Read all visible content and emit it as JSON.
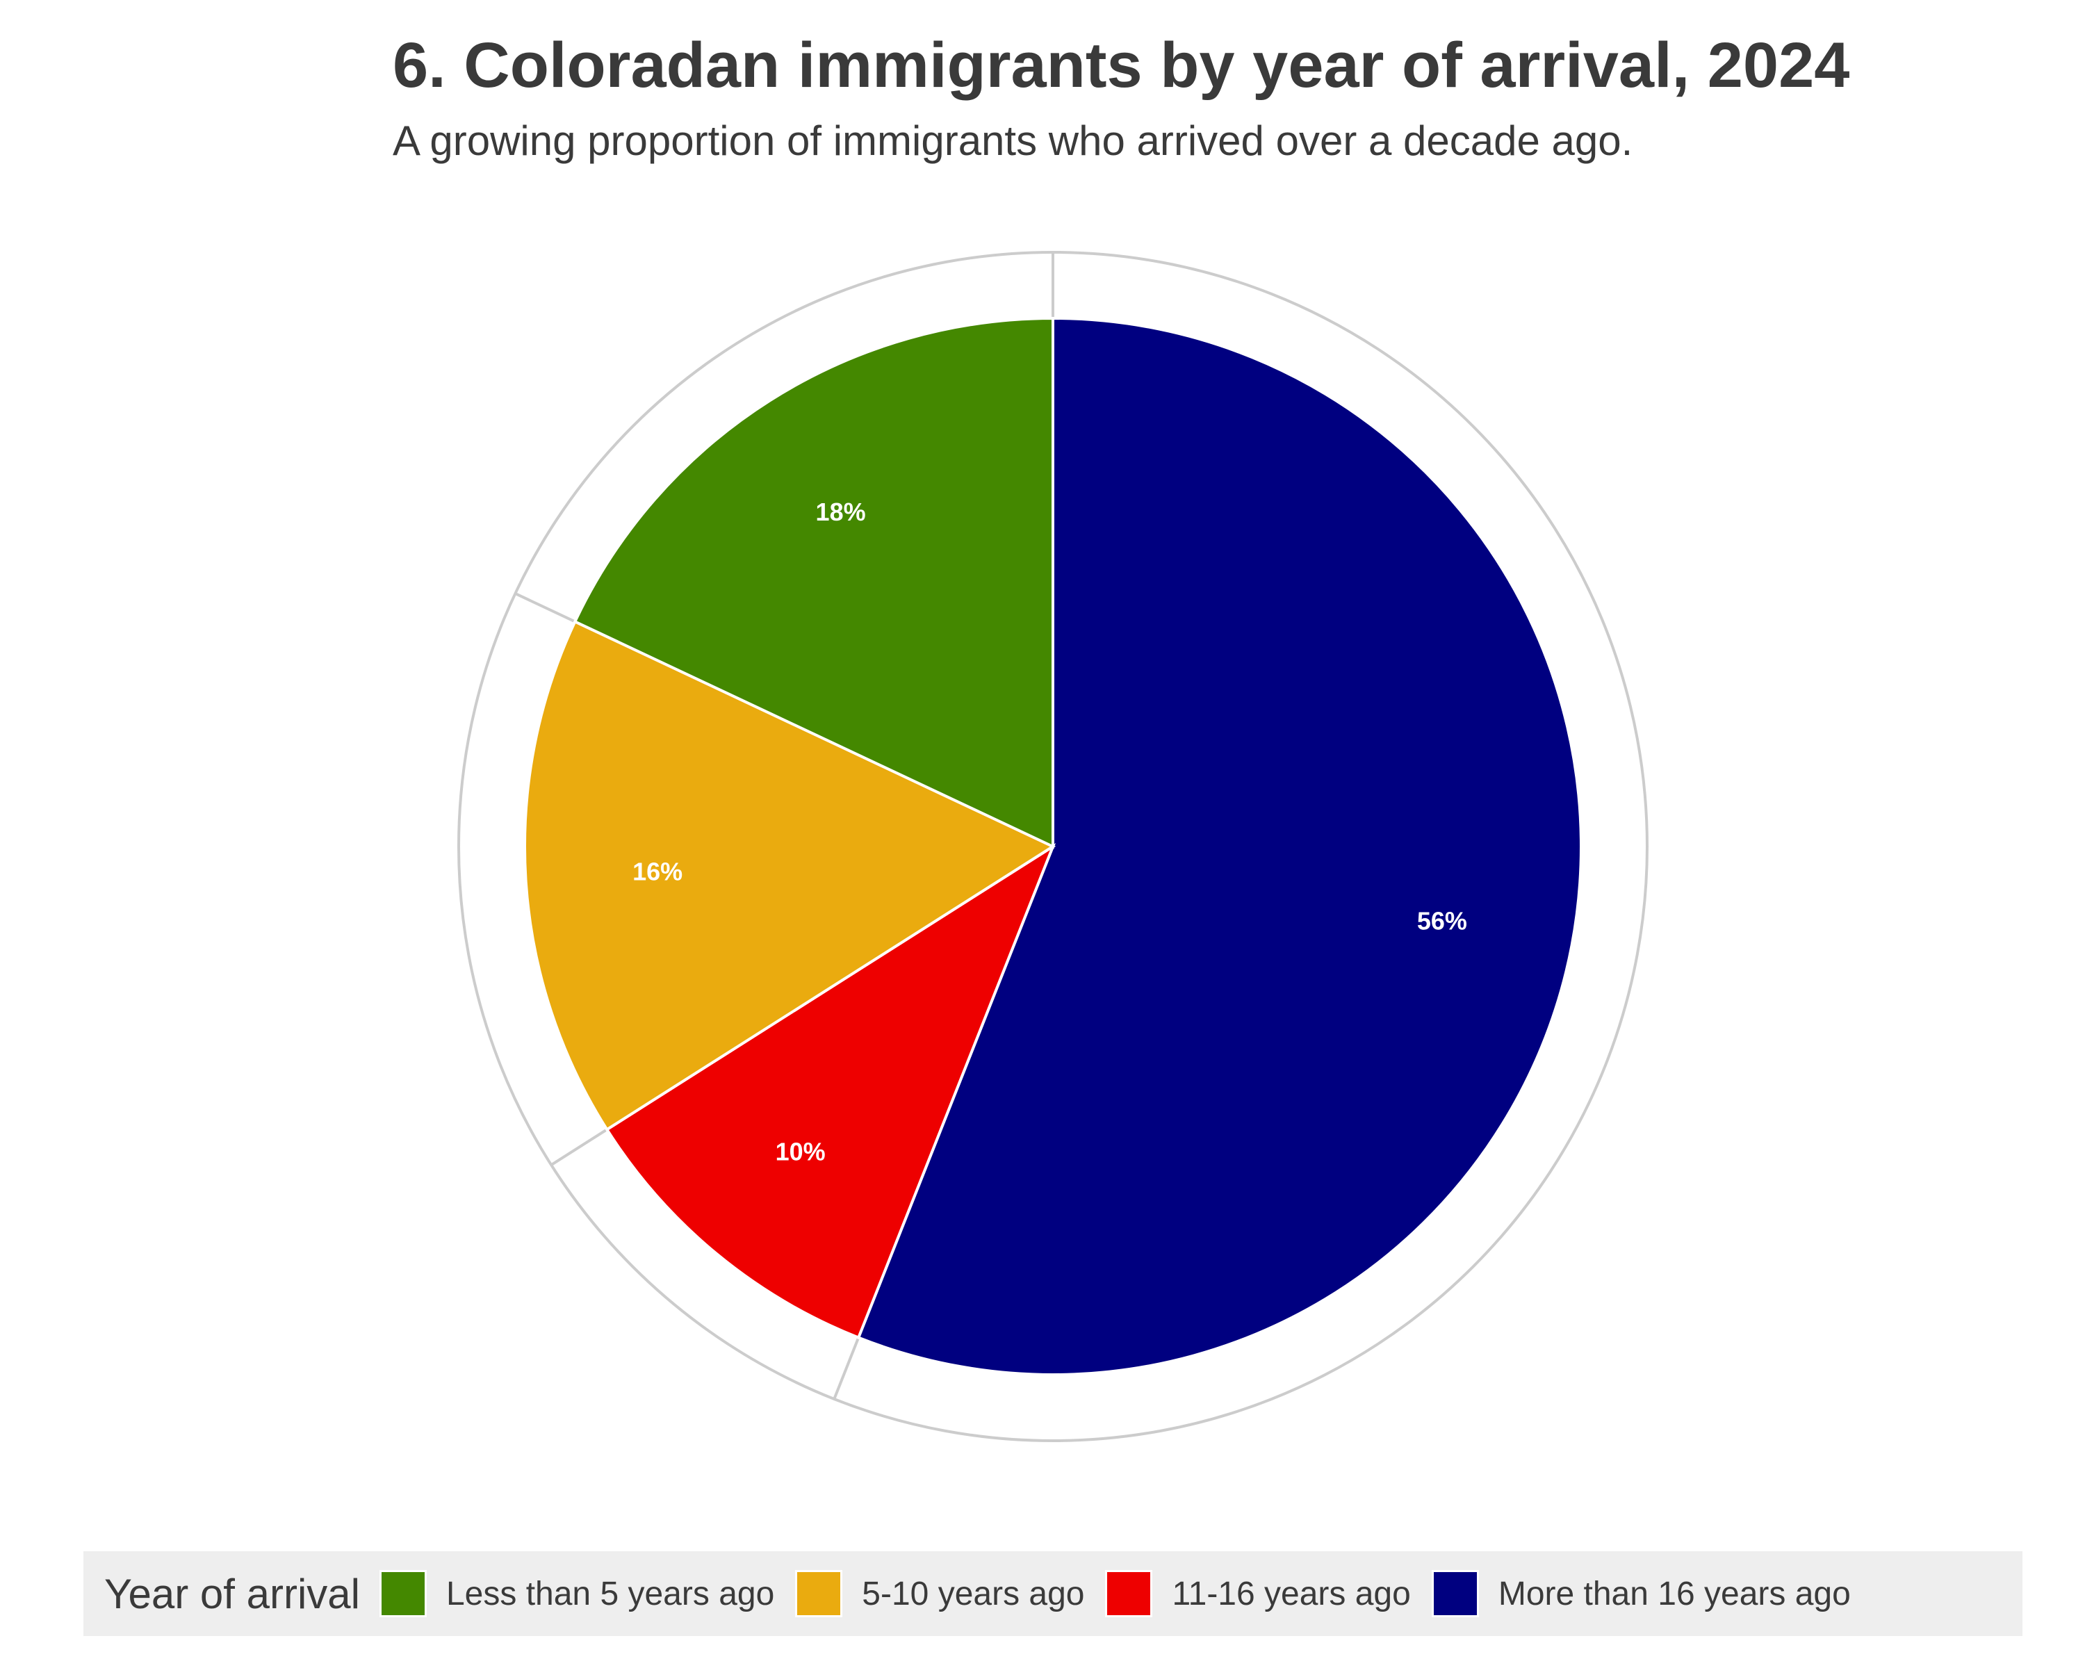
{
  "title": "6. Coloradan immigrants by year of arrival, 2024",
  "subtitle": "A growing proportion of immigrants who arrived over a decade ago.",
  "legend": {
    "title": "Year of arrival",
    "items": [
      {
        "label": "Less than 5 years ago",
        "color": "#448800"
      },
      {
        "label": "5-10 years ago",
        "color": "#EAAB0F"
      },
      {
        "label": "11-16 years ago",
        "color": "#EE0000"
      },
      {
        "label": "More than 16 years ago",
        "color": "#000080"
      }
    ]
  },
  "chart_data": {
    "type": "pie",
    "title": "6. Coloradan immigrants by year of arrival, 2024",
    "subtitle": "A growing proportion of immigrants who arrived over a decade ago.",
    "legend_title": "Year of arrival",
    "legend_position": "bottom",
    "direction": "clockwise from 12 o'clock",
    "slices": [
      {
        "label": "More than 16 years ago",
        "value": 56,
        "display": "56%",
        "color": "#000080"
      },
      {
        "label": "11-16 years ago",
        "value": 10,
        "display": "10%",
        "color": "#EE0000"
      },
      {
        "label": "5-10 years ago",
        "value": 16,
        "display": "16%",
        "color": "#EAAB0F"
      },
      {
        "label": "Less than 5 years ago",
        "value": 18,
        "display": "18%",
        "color": "#448800"
      }
    ]
  }
}
